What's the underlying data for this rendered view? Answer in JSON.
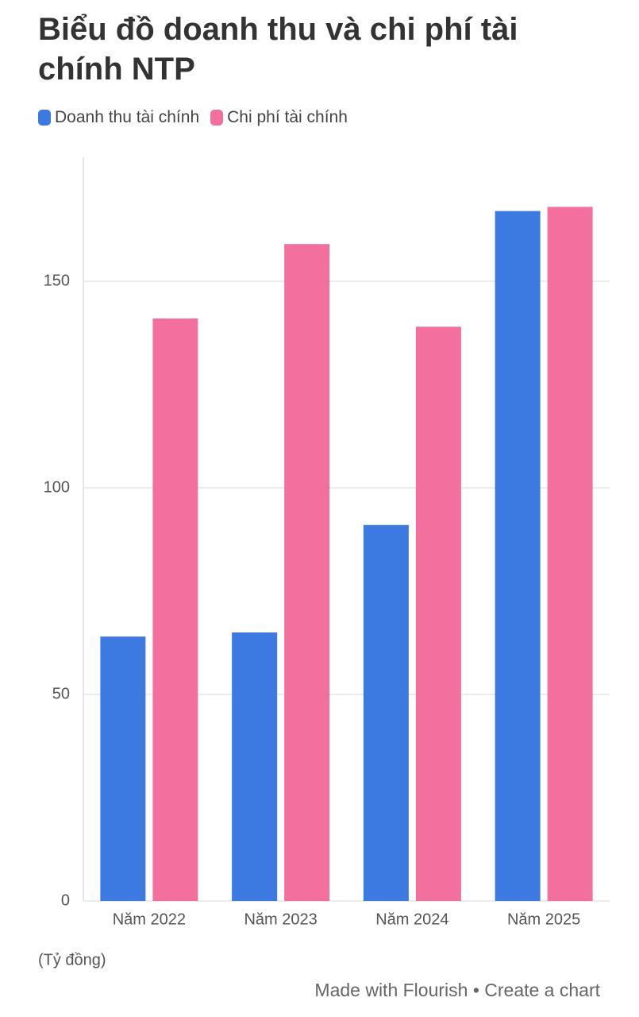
{
  "chart_data": {
    "type": "bar",
    "title": "Biểu đồ doanh thu và chi phí tài chính NTP",
    "categories": [
      "Năm 2022",
      "Năm 2023",
      "Năm 2024",
      "Năm 2025"
    ],
    "series": [
      {
        "name": "Doanh thu tài chính",
        "color": "#3c7ae2",
        "values": [
          64,
          65,
          91,
          167
        ]
      },
      {
        "name": "Chi phí tài chính",
        "color": "#f26f9e",
        "values": [
          141,
          159,
          139,
          168
        ]
      }
    ],
    "ylim": [
      0,
      180
    ],
    "yticks": [
      0,
      50,
      100,
      150
    ],
    "grid": true,
    "y_unit_note": "(Tỷ đồng)",
    "footer": "Made with Flourish • Create a chart"
  }
}
